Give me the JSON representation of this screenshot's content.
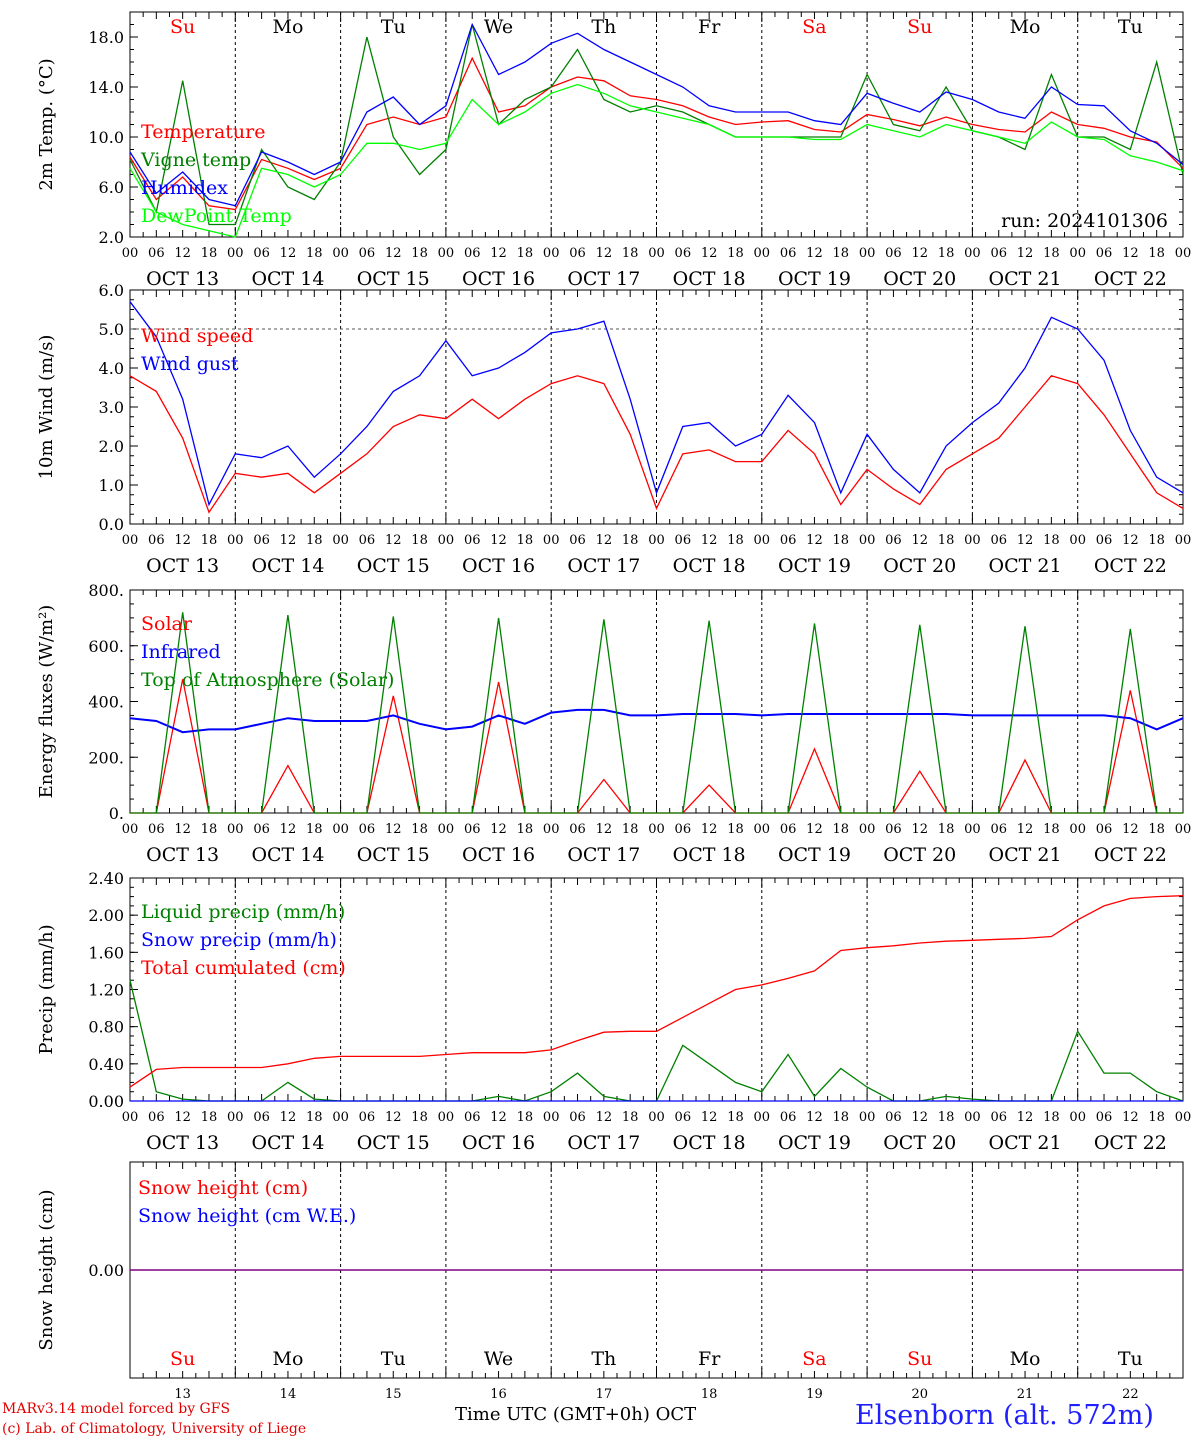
{
  "days": [
    "Su",
    "Mo",
    "Tu",
    "We",
    "Th",
    "Fr",
    "Sa",
    "Su",
    "Mo",
    "Tu"
  ],
  "day_colors": [
    "#ff0000",
    "#000000",
    "#000000",
    "#000000",
    "#000000",
    "#000000",
    "#ff0000",
    "#ff0000",
    "#000000",
    "#000000"
  ],
  "dates": [
    "OCT 13",
    "OCT 14",
    "OCT 15",
    "OCT 16",
    "OCT 17",
    "OCT 18",
    "OCT 19",
    "OCT 20",
    "OCT 21",
    "OCT 22"
  ],
  "day_numbers": [
    "13",
    "14",
    "15",
    "16",
    "17",
    "18",
    "19",
    "20",
    "21",
    "22"
  ],
  "hour_ticks": [
    "00",
    "06",
    "12",
    "18"
  ],
  "chart_data": [
    {
      "type": "line",
      "ylabel": "2m Temp. (°C)",
      "ylim": [
        2,
        20
      ],
      "yticks": [
        "2.0",
        "6.0",
        "10.0",
        "14.0",
        "18.0"
      ],
      "annotation": "run: 2024101306",
      "x_hours": [
        0,
        6,
        12,
        18,
        24,
        30,
        36,
        42,
        48,
        54,
        60,
        66,
        72,
        78,
        84,
        90,
        96,
        102,
        108,
        114,
        120,
        126,
        132,
        138,
        144,
        150,
        156,
        162,
        168,
        174,
        180,
        186,
        192,
        198,
        204,
        210,
        216,
        222,
        228,
        234,
        240
      ],
      "series": [
        {
          "name": "Temperature",
          "color": "#ff0000",
          "values": [
            8.4,
            5.0,
            6.8,
            4.5,
            4.2,
            8.2,
            7.5,
            6.6,
            7.5,
            11.0,
            11.6,
            11.0,
            11.6,
            16.3,
            12.0,
            12.5,
            14.0,
            14.8,
            14.5,
            13.3,
            13.0,
            12.5,
            11.6,
            11.0,
            11.2,
            11.3,
            10.6,
            10.4,
            11.8,
            11.4,
            10.9,
            11.6,
            11.0,
            10.6,
            10.4,
            12.0,
            11.0,
            10.7,
            10.0,
            9.6,
            7.5
          ]
        },
        {
          "name": "Vigne temp",
          "color": "#008000",
          "values": [
            8.2,
            4.0,
            14.5,
            3.0,
            3.0,
            9.0,
            6.0,
            5.0,
            8.0,
            18.0,
            10.0,
            7.0,
            9.0,
            19.0,
            11.0,
            13.0,
            14.0,
            17.0,
            13.0,
            12.0,
            12.5,
            12.0,
            11.0,
            10.0,
            10.0,
            10.0,
            10.0,
            10.0,
            15.0,
            11.0,
            10.5,
            14.0,
            10.5,
            10.0,
            9.0,
            15.0,
            10.0,
            10.0,
            9.0,
            16.0,
            7.0
          ]
        },
        {
          "name": "Humidex",
          "color": "#0000ff",
          "values": [
            8.8,
            5.5,
            7.2,
            5.0,
            4.5,
            8.8,
            8.0,
            7.0,
            8.0,
            12.0,
            13.2,
            11.0,
            12.5,
            19.0,
            15.0,
            16.0,
            17.5,
            18.3,
            17.0,
            16.0,
            15.0,
            14.0,
            12.5,
            12.0,
            12.0,
            12.0,
            11.3,
            11.0,
            13.5,
            12.7,
            12.0,
            13.6,
            13.0,
            12.0,
            11.5,
            14.0,
            12.6,
            12.5,
            10.5,
            9.5,
            7.8
          ]
        },
        {
          "name": "DewPoint Temp",
          "color": "#00ff00",
          "values": [
            7.5,
            4.0,
            3.0,
            2.5,
            2.0,
            7.5,
            7.0,
            6.0,
            7.0,
            9.5,
            9.5,
            9.0,
            9.5,
            13.0,
            11.0,
            12.0,
            13.5,
            14.2,
            13.5,
            12.5,
            12.0,
            11.5,
            11.0,
            10.0,
            10.0,
            10.0,
            9.8,
            9.8,
            11.0,
            10.5,
            10.0,
            11.0,
            10.5,
            10.0,
            9.5,
            11.2,
            10.0,
            9.8,
            8.5,
            8.0,
            7.3
          ]
        }
      ]
    },
    {
      "type": "line",
      "ylabel": "10m Wind (m/s)",
      "ylim": [
        0,
        6
      ],
      "yticks": [
        "0.0",
        "1.0",
        "2.0",
        "3.0",
        "4.0",
        "5.0",
        "6.0"
      ],
      "x_hours": [
        0,
        6,
        12,
        18,
        24,
        30,
        36,
        42,
        48,
        54,
        60,
        66,
        72,
        78,
        84,
        90,
        96,
        102,
        108,
        114,
        120,
        126,
        132,
        138,
        144,
        150,
        156,
        162,
        168,
        174,
        180,
        186,
        192,
        198,
        204,
        210,
        216,
        222,
        228,
        234,
        240
      ],
      "series": [
        {
          "name": "Wind speed",
          "color": "#ff0000",
          "values": [
            3.8,
            3.4,
            2.2,
            0.3,
            1.3,
            1.2,
            1.3,
            0.8,
            1.3,
            1.8,
            2.5,
            2.8,
            2.7,
            3.2,
            2.7,
            3.2,
            3.6,
            3.8,
            3.6,
            2.3,
            0.4,
            1.8,
            1.9,
            1.6,
            1.6,
            2.4,
            1.8,
            0.5,
            1.4,
            0.9,
            0.5,
            1.4,
            1.8,
            2.2,
            3.0,
            3.8,
            3.6,
            2.8,
            1.8,
            0.8,
            0.4
          ]
        },
        {
          "name": "Wind gust",
          "color": "#0000ff",
          "values": [
            5.7,
            4.8,
            3.2,
            0.5,
            1.8,
            1.7,
            2.0,
            1.2,
            1.8,
            2.5,
            3.4,
            3.8,
            4.7,
            3.8,
            4.0,
            4.4,
            4.9,
            5.0,
            5.2,
            3.2,
            0.8,
            2.5,
            2.6,
            2.0,
            2.3,
            3.3,
            2.6,
            0.8,
            2.3,
            1.4,
            0.8,
            2.0,
            2.6,
            3.1,
            4.0,
            5.3,
            5.0,
            4.2,
            2.4,
            1.2,
            0.8
          ]
        }
      ]
    },
    {
      "type": "line",
      "ylabel": "Energy fluxes (W/m²)",
      "ylim": [
        0,
        800
      ],
      "yticks": [
        "0.",
        "200.",
        "400.",
        "600.",
        "800."
      ],
      "x_hours": [
        0,
        6,
        12,
        18,
        24,
        30,
        36,
        42,
        48,
        54,
        60,
        66,
        72,
        78,
        84,
        90,
        96,
        102,
        108,
        114,
        120,
        126,
        132,
        138,
        144,
        150,
        156,
        162,
        168,
        174,
        180,
        186,
        192,
        198,
        204,
        210,
        216,
        222,
        228,
        234,
        240
      ],
      "series": [
        {
          "name": "Solar",
          "color": "#ff0000",
          "values": [
            0,
            0,
            480,
            0,
            0,
            0,
            170,
            0,
            0,
            0,
            420,
            0,
            0,
            0,
            470,
            0,
            0,
            0,
            120,
            0,
            0,
            0,
            100,
            0,
            0,
            0,
            230,
            0,
            0,
            0,
            150,
            0,
            0,
            0,
            190,
            0,
            0,
            0,
            440,
            0,
            0
          ]
        },
        {
          "name": "Infrared",
          "color": "#0000ff",
          "values": [
            340,
            330,
            290,
            300,
            300,
            320,
            340,
            330,
            330,
            330,
            350,
            320,
            300,
            310,
            350,
            320,
            360,
            370,
            370,
            350,
            350,
            355,
            355,
            355,
            350,
            355,
            355,
            355,
            355,
            355,
            355,
            355,
            350,
            350,
            350,
            350,
            350,
            350,
            340,
            300,
            340
          ]
        },
        {
          "name": "Top of Atmosphere (Solar)",
          "color": "#008000",
          "values": [
            0,
            0,
            720,
            0,
            0,
            0,
            710,
            0,
            0,
            0,
            705,
            0,
            0,
            0,
            700,
            0,
            0,
            0,
            695,
            0,
            0,
            0,
            690,
            0,
            0,
            0,
            680,
            0,
            0,
            0,
            675,
            0,
            0,
            0,
            670,
            0,
            0,
            0,
            660,
            0,
            0
          ]
        }
      ]
    },
    {
      "type": "line",
      "ylabel": "Precip (mm/h)",
      "ylim": [
        0,
        2.4
      ],
      "yticks": [
        "0.00",
        "0.40",
        "0.80",
        "1.20",
        "1.60",
        "2.00",
        "2.40"
      ],
      "x_hours": [
        0,
        6,
        12,
        18,
        24,
        30,
        36,
        42,
        48,
        54,
        60,
        66,
        72,
        78,
        84,
        90,
        96,
        102,
        108,
        114,
        120,
        126,
        132,
        138,
        144,
        150,
        156,
        162,
        168,
        174,
        180,
        186,
        192,
        198,
        204,
        210,
        216,
        222,
        228,
        234,
        240
      ],
      "series": [
        {
          "name": "Liquid precip (mm/h)",
          "color": "#008000",
          "values": [
            1.3,
            0.1,
            0.02,
            0.0,
            0.0,
            0.0,
            0.2,
            0.02,
            0.0,
            0.0,
            0.0,
            0.0,
            0.0,
            0.0,
            0.05,
            0.0,
            0.1,
            0.3,
            0.05,
            0.0,
            0.0,
            0.6,
            0.4,
            0.2,
            0.1,
            0.5,
            0.05,
            0.35,
            0.15,
            0.0,
            0.0,
            0.05,
            0.02,
            0.0,
            0.0,
            0.0,
            0.75,
            0.3,
            0.3,
            0.1,
            0.0
          ]
        },
        {
          "name": "Snow precip (mm/h)",
          "color": "#0000ff",
          "values": [
            0,
            0,
            0,
            0,
            0,
            0,
            0,
            0,
            0,
            0,
            0,
            0,
            0,
            0,
            0,
            0,
            0,
            0,
            0,
            0,
            0,
            0,
            0,
            0,
            0,
            0,
            0,
            0,
            0,
            0,
            0,
            0,
            0,
            0,
            0,
            0,
            0,
            0,
            0,
            0,
            0
          ]
        },
        {
          "name": "Total cumulated (cm)",
          "color": "#ff0000",
          "values": [
            0.15,
            0.34,
            0.36,
            0.36,
            0.36,
            0.36,
            0.4,
            0.46,
            0.48,
            0.48,
            0.48,
            0.48,
            0.5,
            0.52,
            0.52,
            0.52,
            0.55,
            0.65,
            0.74,
            0.75,
            0.75,
            0.9,
            1.05,
            1.2,
            1.25,
            1.32,
            1.4,
            1.62,
            1.65,
            1.67,
            1.7,
            1.72,
            1.73,
            1.74,
            1.75,
            1.77,
            1.95,
            2.1,
            2.18,
            2.2,
            2.21
          ]
        }
      ]
    },
    {
      "type": "line",
      "ylabel": "Snow height (cm)",
      "yticks": [
        "0.00"
      ],
      "x_hours": [
        0,
        240
      ],
      "series": [
        {
          "name": "Snow height (cm)",
          "color": "#ff0000",
          "values": [
            0,
            0
          ]
        },
        {
          "name": "Snow height (cm W.E.)",
          "color": "#0000ff",
          "values": [
            0,
            0
          ]
        }
      ]
    }
  ],
  "footer": {
    "model": "MARv3.14 model forced by GFS",
    "credit": "(c) Lab. of Climatology, University of Liege",
    "xlabel": "Time UTC (GMT+0h) OCT",
    "station": "Elsenborn (alt. 572m)"
  },
  "colors": {
    "purple": "#800080",
    "grid": "#000000"
  }
}
